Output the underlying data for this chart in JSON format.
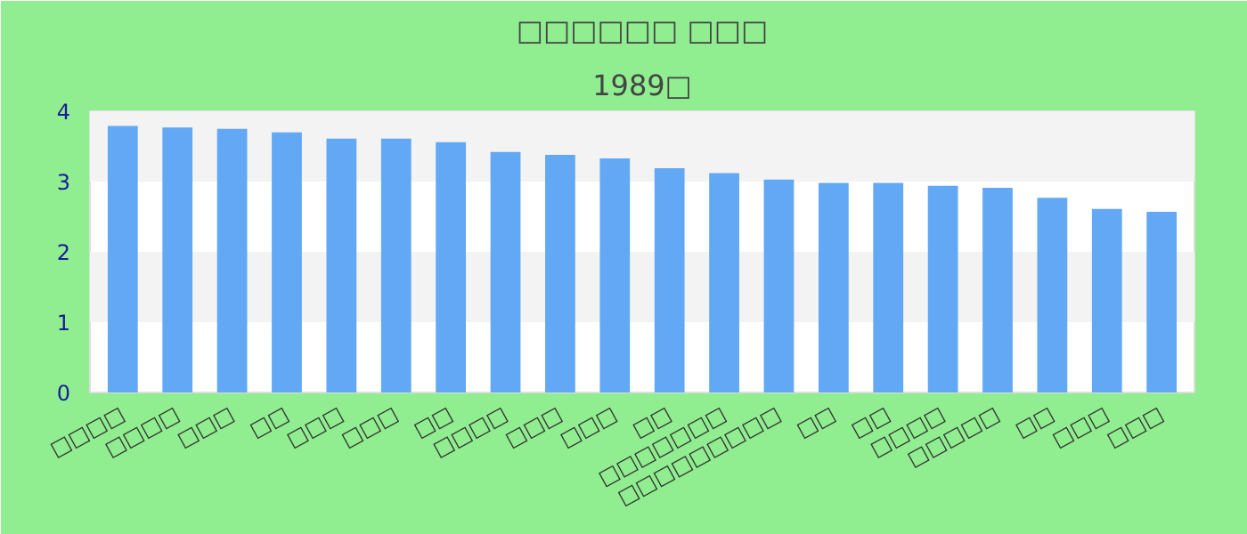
{
  "chart_data": {
    "type": "bar",
    "title": "□□□□□□ □□□",
    "subtitle": "1989□",
    "categories": [
      "□□□□",
      "□□□□",
      "□□□",
      "□□",
      "□□□",
      "□□□",
      "□□",
      "□□□□",
      "□□□",
      "□□□",
      "□□",
      "□□□□□□□",
      "□□□□□□□□□",
      "□□",
      "□□",
      "□□□□",
      "□□□□□",
      "□□",
      "□□□",
      "□□□"
    ],
    "values": [
      3.79,
      3.77,
      3.75,
      3.7,
      3.61,
      3.61,
      3.56,
      3.42,
      3.38,
      3.33,
      3.19,
      3.12,
      3.03,
      2.98,
      2.98,
      2.94,
      2.91,
      2.77,
      2.61,
      2.57
    ],
    "color": "#62a8f4",
    "ylim": [
      0,
      4
    ],
    "yticks": [
      0,
      1,
      2,
      3,
      4
    ]
  }
}
